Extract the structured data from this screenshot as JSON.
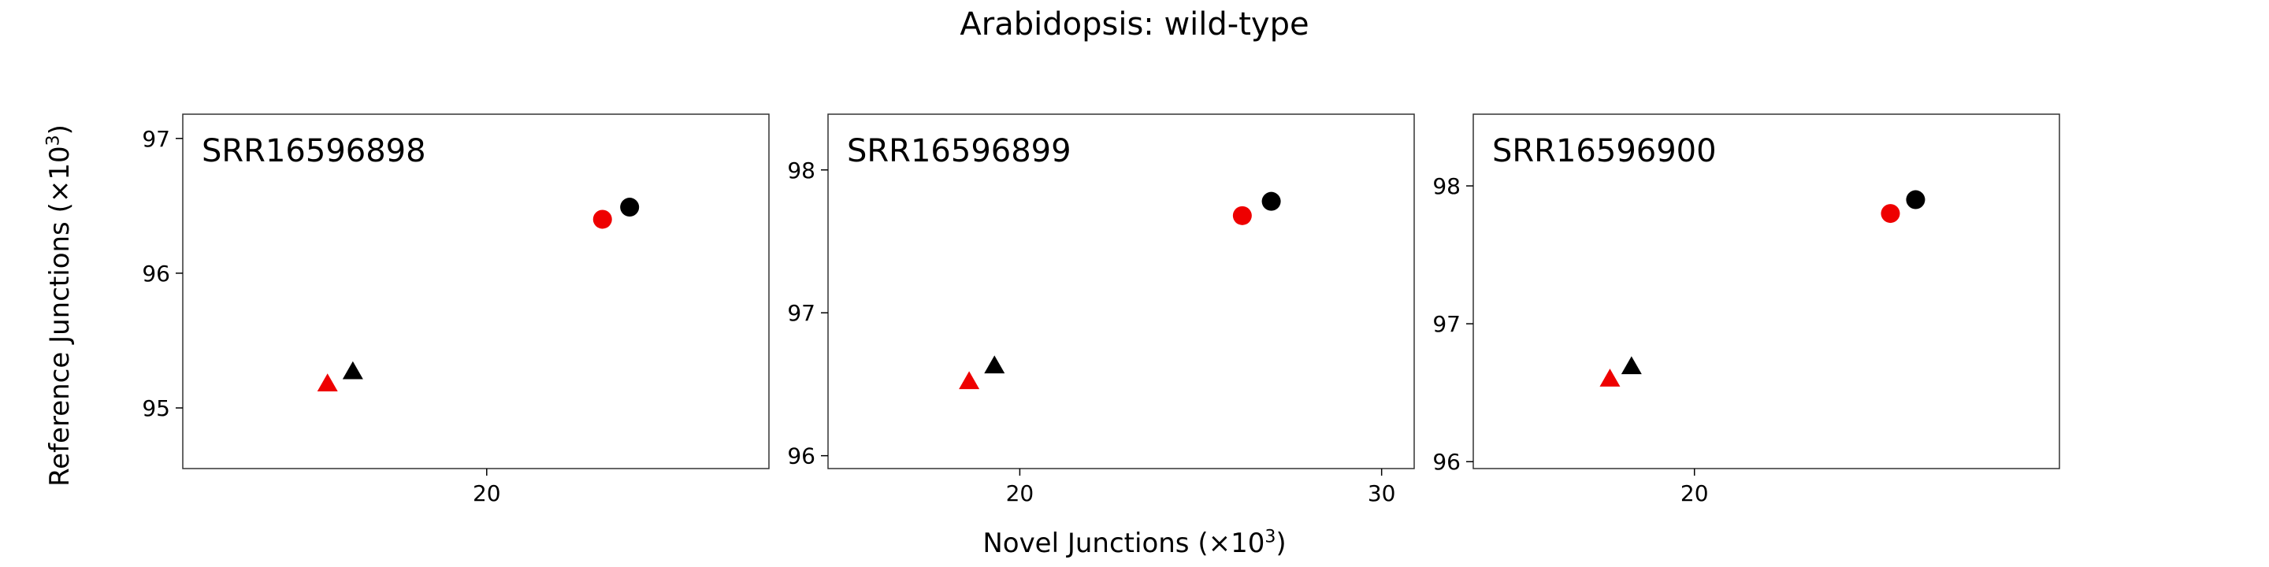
{
  "figure": {
    "title": "Arabidopsis: wild-type",
    "xlabel_prefix": "Novel Junctions (×10",
    "xlabel_exp": "3",
    "xlabel_suffix": ")",
    "ylabel_prefix": "Reference Junctions (×10",
    "ylabel_exp": "3",
    "ylabel_suffix": ")"
  },
  "colors": {
    "red": "#ee0000",
    "black": "#000000"
  },
  "chart_data": [
    {
      "type": "scatter",
      "title": "SRR16596898",
      "xlim": [
        11.6,
        27.8
      ],
      "ylim": [
        94.55,
        97.18
      ],
      "xticks": [
        20
      ],
      "yticks": [
        95,
        96,
        97
      ],
      "points": [
        {
          "marker": "circle",
          "color": "red",
          "x": 23.2,
          "y": 96.4
        },
        {
          "marker": "circle",
          "color": "black",
          "x": 23.95,
          "y": 96.49
        },
        {
          "marker": "triangle",
          "color": "red",
          "x": 15.6,
          "y": 95.18
        },
        {
          "marker": "triangle",
          "color": "black",
          "x": 16.3,
          "y": 95.27
        }
      ]
    },
    {
      "type": "scatter",
      "title": "SRR16596899",
      "xlim": [
        14.7,
        30.9
      ],
      "ylim": [
        95.91,
        98.39
      ],
      "xticks": [
        20,
        30
      ],
      "yticks": [
        96,
        97,
        98
      ],
      "points": [
        {
          "marker": "circle",
          "color": "red",
          "x": 26.15,
          "y": 97.68
        },
        {
          "marker": "circle",
          "color": "black",
          "x": 26.95,
          "y": 97.78
        },
        {
          "marker": "triangle",
          "color": "red",
          "x": 18.6,
          "y": 96.52
        },
        {
          "marker": "triangle",
          "color": "black",
          "x": 19.3,
          "y": 96.63
        }
      ]
    },
    {
      "type": "scatter",
      "title": "SRR16596900",
      "xlim": [
        13.85,
        30.15
      ],
      "ylim": [
        95.95,
        98.52
      ],
      "xticks": [
        20
      ],
      "yticks": [
        96,
        97,
        98
      ],
      "points": [
        {
          "marker": "circle",
          "color": "red",
          "x": 25.45,
          "y": 97.8
        },
        {
          "marker": "circle",
          "color": "black",
          "x": 26.15,
          "y": 97.9
        },
        {
          "marker": "triangle",
          "color": "red",
          "x": 17.65,
          "y": 96.6
        },
        {
          "marker": "triangle",
          "color": "black",
          "x": 18.25,
          "y": 96.69
        }
      ]
    }
  ]
}
